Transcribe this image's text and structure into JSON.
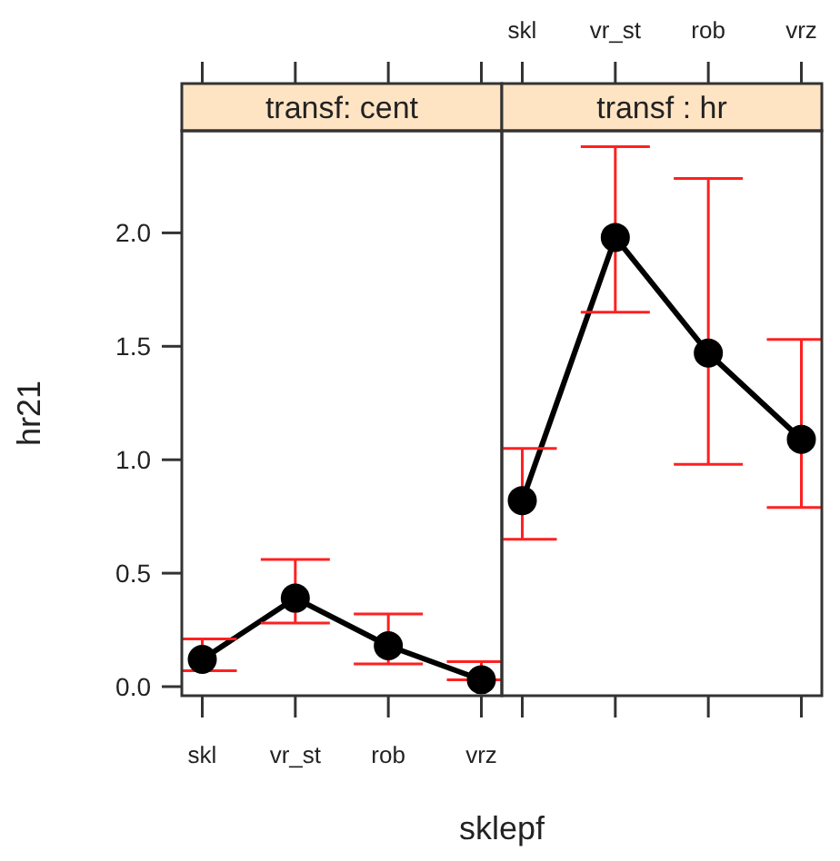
{
  "chart_data": [
    {
      "type": "line",
      "title": "transf: cent",
      "xlabel": "sklepf",
      "ylabel": "hr21",
      "categories": [
        "skl",
        "vr_st",
        "rob",
        "vrz"
      ],
      "ylim": [
        -0.04,
        2.45
      ],
      "yticks": [
        {
          "value": 0,
          "label": "0.0"
        },
        0.5,
        {
          "value": 1,
          "label": "1.0"
        },
        1.5,
        {
          "value": 2,
          "label": "2.0"
        }
      ],
      "marker": "circle",
      "line_style": "solid",
      "series": [
        {
          "color": "#000000",
          "values": [
            0.12,
            0.39,
            0.18,
            0.03
          ],
          "errors": [
            [
              0.07,
              0.21
            ],
            [
              0.28,
              0.56
            ],
            [
              0.1,
              0.32
            ],
            [
              0.03,
              0.11
            ]
          ]
        }
      ]
    },
    {
      "type": "line",
      "title": "transf : hr",
      "categories": [
        "skl",
        "vr_st",
        "rob",
        "vrz"
      ],
      "ylim": [
        -0.04,
        2.45
      ],
      "tick_labels": "x",
      "marker": "circle",
      "line_style": "solid",
      "series": [
        {
          "color": "#000000",
          "values": [
            0.82,
            1.98,
            1.47,
            1.09
          ],
          "errors": [
            [
              0.65,
              1.05
            ],
            [
              1.65,
              2.38
            ],
            [
              0.98,
              2.24
            ],
            [
              0.79,
              1.53
            ]
          ]
        }
      ]
    }
  ]
}
